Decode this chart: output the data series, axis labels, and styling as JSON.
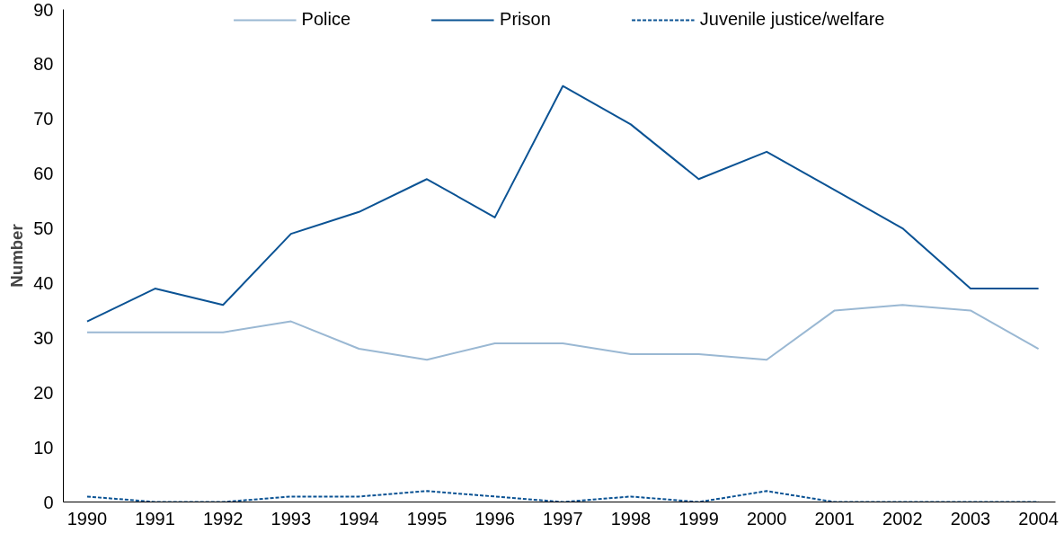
{
  "chart_data": {
    "type": "line",
    "ylabel": "Number",
    "categories": [
      "1990",
      "1991",
      "1992",
      "1993",
      "1994",
      "1995",
      "1996",
      "1997",
      "1998",
      "1999",
      "2000",
      "2001",
      "2002",
      "2003",
      "2004"
    ],
    "series": [
      {
        "name": "Police",
        "color": "#9ab8d3",
        "line_style": "solid",
        "values": [
          31,
          31,
          31,
          33,
          28,
          26,
          29,
          29,
          27,
          27,
          26,
          35,
          36,
          35,
          28
        ]
      },
      {
        "name": "Prison",
        "color": "#0b5394",
        "line_style": "solid",
        "values": [
          33,
          39,
          36,
          49,
          53,
          59,
          52,
          76,
          69,
          59,
          64,
          57,
          50,
          39,
          39
        ]
      },
      {
        "name": "Juvenile justice/welfare",
        "color": "#0b5394",
        "line_style": "dashed",
        "values": [
          1,
          0,
          0,
          1,
          1,
          2,
          1,
          0,
          1,
          0,
          2,
          0,
          0,
          0,
          0
        ]
      }
    ],
    "ylim": [
      0,
      90
    ],
    "yticks": [
      0,
      10,
      20,
      30,
      40,
      50,
      60,
      70,
      80,
      90
    ],
    "grid": false,
    "legend": "top",
    "marker": "none"
  }
}
